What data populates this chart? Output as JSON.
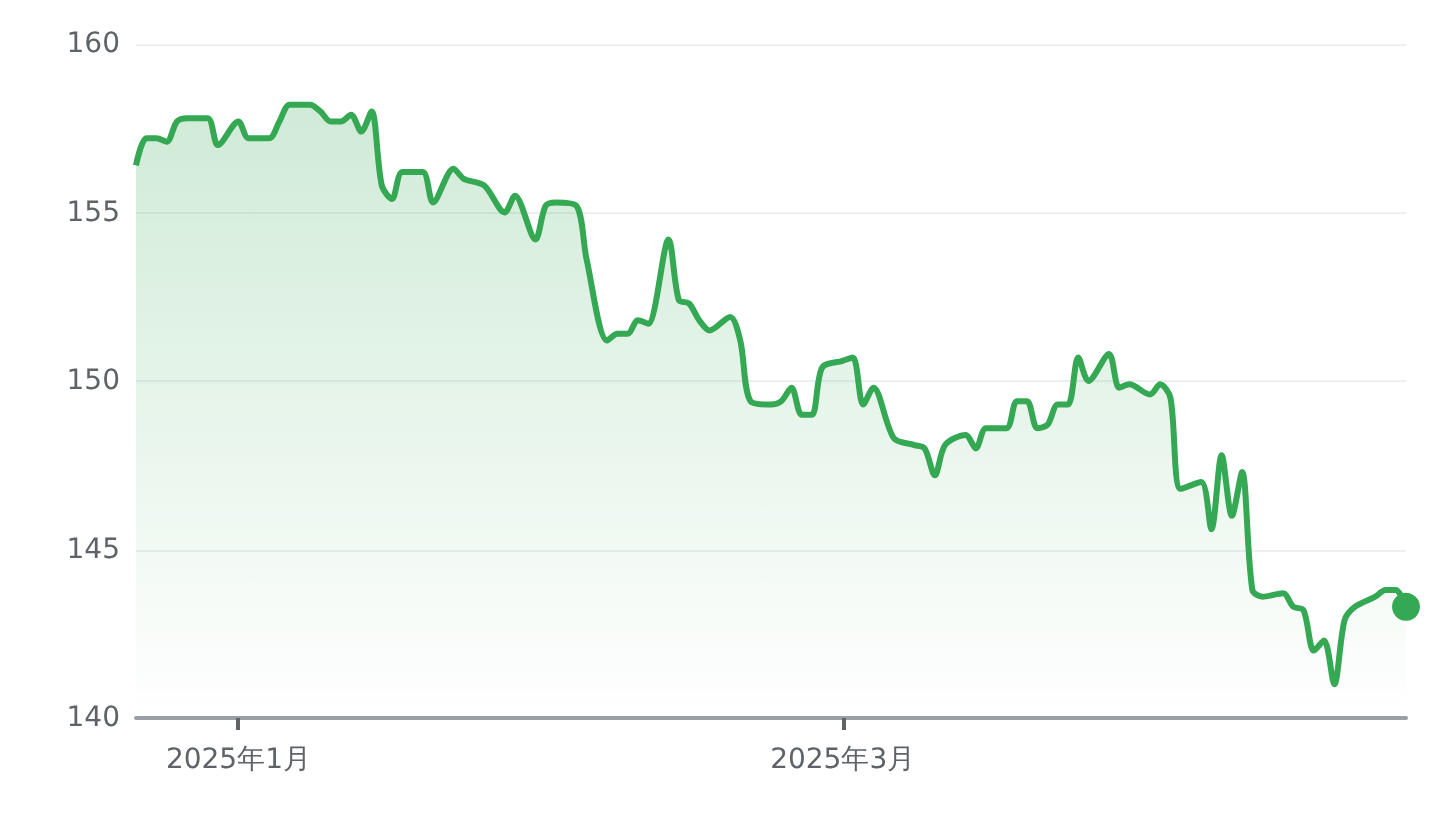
{
  "chart_data": {
    "type": "area",
    "x": [
      "2024-12-22",
      "2024-12-23",
      "2024-12-24",
      "2024-12-25",
      "2024-12-26",
      "2024-12-27",
      "2024-12-29",
      "2024-12-30",
      "2025-01-01",
      "2025-01-02",
      "2025-01-04",
      "2025-01-05",
      "2025-01-06",
      "2025-01-08",
      "2025-01-09",
      "2025-01-10",
      "2025-01-11",
      "2025-01-12",
      "2025-01-13",
      "2025-01-14",
      "2025-01-15",
      "2025-01-16",
      "2025-01-17",
      "2025-01-19",
      "2025-01-20",
      "2025-01-22",
      "2025-01-23",
      "2025-01-25",
      "2025-01-27",
      "2025-01-28",
      "2025-01-30",
      "2025-01-31",
      "2025-02-01",
      "2025-02-03",
      "2025-02-04",
      "2025-02-06",
      "2025-02-07",
      "2025-02-08",
      "2025-02-09",
      "2025-02-10",
      "2025-02-12",
      "2025-02-13",
      "2025-02-14",
      "2025-02-15",
      "2025-02-16",
      "2025-02-18",
      "2025-02-19",
      "2025-02-20",
      "2025-02-22",
      "2025-02-23",
      "2025-02-24",
      "2025-02-25",
      "2025-02-26",
      "2025-02-27",
      "2025-03-01",
      "2025-03-02",
      "2025-03-03",
      "2025-03-04",
      "2025-03-06",
      "2025-03-08",
      "2025-03-09",
      "2025-03-10",
      "2025-03-11",
      "2025-03-13",
      "2025-03-14",
      "2025-03-15",
      "2025-03-17",
      "2025-03-18",
      "2025-03-19",
      "2025-03-20",
      "2025-03-21",
      "2025-03-22",
      "2025-03-23",
      "2025-03-24",
      "2025-03-25",
      "2025-03-27",
      "2025-03-28",
      "2025-03-29",
      "2025-03-31",
      "2025-04-01",
      "2025-04-02",
      "2025-04-03",
      "2025-04-05",
      "2025-04-06",
      "2025-04-07",
      "2025-04-08",
      "2025-04-09",
      "2025-04-10",
      "2025-04-11",
      "2025-04-13",
      "2025-04-14",
      "2025-04-15",
      "2025-04-16",
      "2025-04-17",
      "2025-04-18",
      "2025-04-19",
      "2025-04-20",
      "2025-04-22",
      "2025-04-23",
      "2025-04-24",
      "2025-04-25"
    ],
    "series": [
      {
        "color": "#34a853",
        "values": [
          156.4,
          157.2,
          157.2,
          157.1,
          157.7,
          157.8,
          157.8,
          157.0,
          157.7,
          157.2,
          157.2,
          157.7,
          158.2,
          158.2,
          158.0,
          157.7,
          157.7,
          157.9,
          157.4,
          158.0,
          155.8,
          155.4,
          156.2,
          156.2,
          155.3,
          156.3,
          156.0,
          155.8,
          155.0,
          155.5,
          154.2,
          155.2,
          155.3,
          155.2,
          153.6,
          151.2,
          151.4,
          151.4,
          151.8,
          151.7,
          154.2,
          152.4,
          152.3,
          151.8,
          151.5,
          151.9,
          151.2,
          149.4,
          149.3,
          149.4,
          149.8,
          149.0,
          149.0,
          150.4,
          150.6,
          150.7,
          149.3,
          149.8,
          148.3,
          148.1,
          148.0,
          147.2,
          148.1,
          148.4,
          148.0,
          148.6,
          148.6,
          149.4,
          149.4,
          148.6,
          148.7,
          149.3,
          149.3,
          150.7,
          150.0,
          150.8,
          149.8,
          149.9,
          149.6,
          149.9,
          149.5,
          146.8,
          147.0,
          145.6,
          147.8,
          146.0,
          147.3,
          143.8,
          143.6,
          143.7,
          143.3,
          143.2,
          142.0,
          142.3,
          141.0,
          142.9,
          143.3,
          143.6,
          143.8,
          143.8,
          143.3
        ]
      },
      {
        "type": "scatter",
        "color": "#34a853",
        "x": [
          "2025-04-25"
        ],
        "values": [
          143.3
        ]
      }
    ],
    "xlim": [
      "2024-12-22",
      "2025-04-25"
    ],
    "xticks": [
      {
        "value": "2025-01-01",
        "label": "2025年1月"
      },
      {
        "value": "2025-03-01",
        "label": "2025年3月"
      }
    ],
    "ylim": [
      140,
      160
    ],
    "yticks": [
      140,
      145,
      150,
      155,
      160
    ],
    "grid": "y"
  }
}
